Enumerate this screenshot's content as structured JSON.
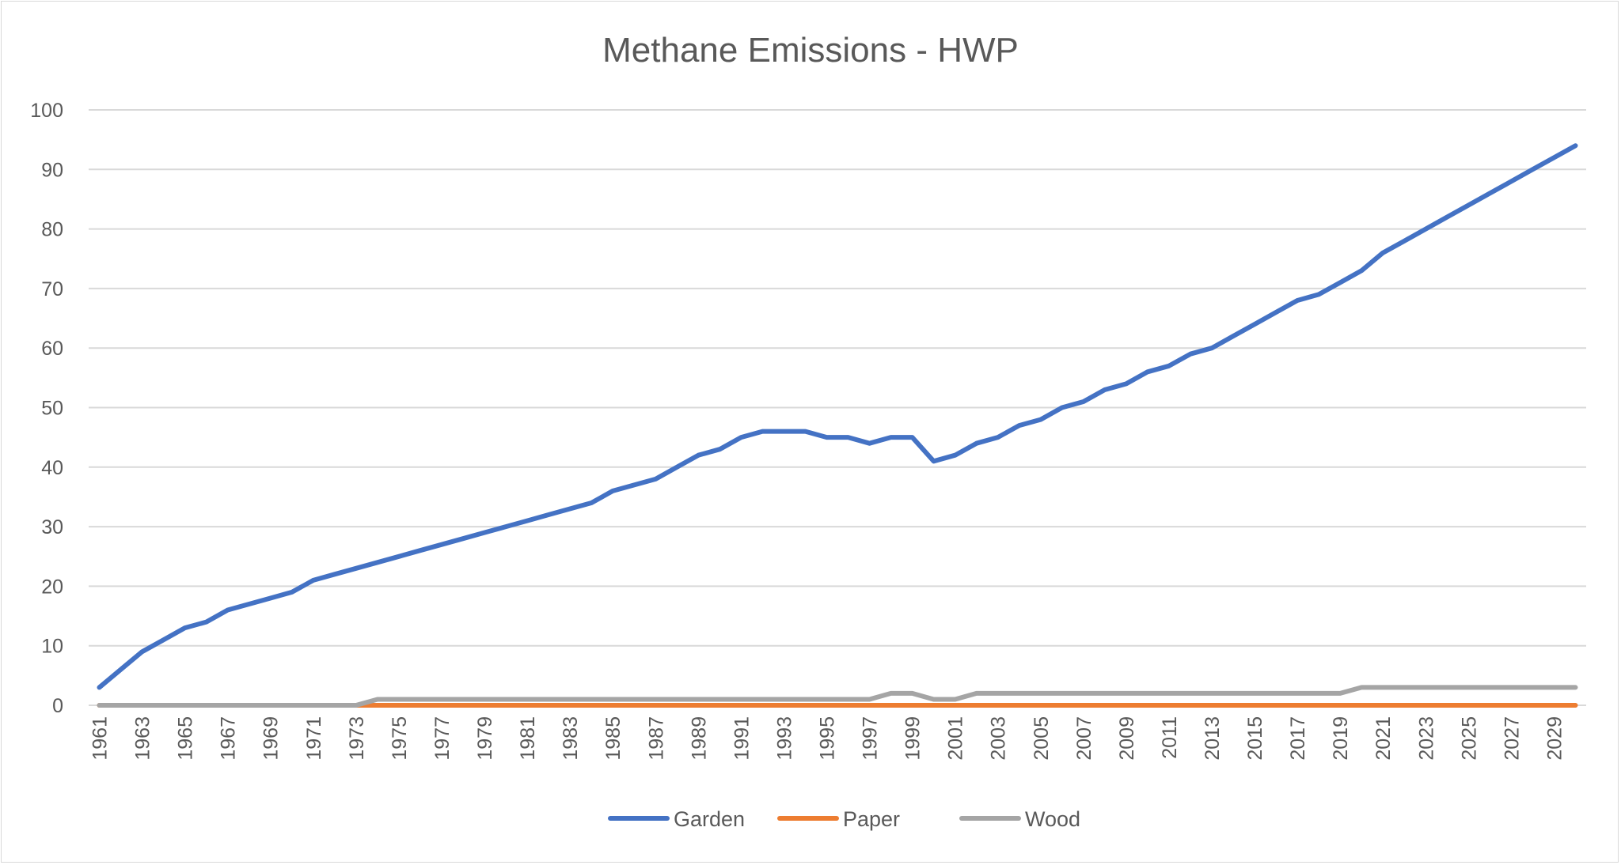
{
  "chart_data": {
    "type": "line",
    "title": "Methane Emissions - HWP",
    "xlabel": "",
    "ylabel": "",
    "ylim": [
      0,
      100
    ],
    "yticks": [
      0,
      10,
      20,
      30,
      40,
      50,
      60,
      70,
      80,
      90,
      100
    ],
    "grid": true,
    "legend_position": "bottom",
    "x": [
      1961,
      1962,
      1963,
      1964,
      1965,
      1966,
      1967,
      1968,
      1969,
      1970,
      1971,
      1972,
      1973,
      1974,
      1975,
      1976,
      1977,
      1978,
      1979,
      1980,
      1981,
      1982,
      1983,
      1984,
      1985,
      1986,
      1987,
      1988,
      1989,
      1990,
      1991,
      1992,
      1993,
      1994,
      1995,
      1996,
      1997,
      1998,
      1999,
      2000,
      2001,
      2002,
      2003,
      2004,
      2005,
      2006,
      2007,
      2008,
      2009,
      2010,
      2011,
      2012,
      2013,
      2014,
      2015,
      2016,
      2017,
      2018,
      2019,
      2020,
      2021,
      2022,
      2023,
      2024,
      2025,
      2026,
      2027,
      2028,
      2029,
      2030
    ],
    "x_tick_labels": [
      "1961",
      "1963",
      "1965",
      "1967",
      "1969",
      "1971",
      "1973",
      "1975",
      "1977",
      "1979",
      "1981",
      "1983",
      "1985",
      "1987",
      "1989",
      "1991",
      "1993",
      "1995",
      "1997",
      "1999",
      "2001",
      "2003",
      "2005",
      "2007",
      "2009",
      "2011",
      "2013",
      "2015",
      "2017",
      "2019",
      "2021",
      "2023",
      "2025",
      "2027",
      "2029"
    ],
    "series": [
      {
        "name": "Garden",
        "color": "#4472C4",
        "values": [
          3,
          6,
          9,
          11,
          13,
          14,
          16,
          17,
          18,
          19,
          21,
          22,
          23,
          24,
          25,
          26,
          27,
          28,
          29,
          30,
          31,
          32,
          33,
          34,
          36,
          37,
          38,
          40,
          42,
          43,
          45,
          46,
          46,
          46,
          45,
          45,
          44,
          45,
          45,
          41,
          42,
          44,
          45,
          47,
          48,
          50,
          51,
          53,
          54,
          56,
          57,
          59,
          60,
          62,
          64,
          66,
          68,
          69,
          71,
          73,
          76,
          78,
          80,
          82,
          84,
          86,
          88,
          90,
          92,
          94
        ]
      },
      {
        "name": "Paper",
        "color": "#ED7D31",
        "values": [
          0,
          0,
          0,
          0,
          0,
          0,
          0,
          0,
          0,
          0,
          0,
          0,
          0,
          0,
          0,
          0,
          0,
          0,
          0,
          0,
          0,
          0,
          0,
          0,
          0,
          0,
          0,
          0,
          0,
          0,
          0,
          0,
          0,
          0,
          0,
          0,
          0,
          0,
          0,
          0,
          0,
          0,
          0,
          0,
          0,
          0,
          0,
          0,
          0,
          0,
          0,
          0,
          0,
          0,
          0,
          0,
          0,
          0,
          0,
          0,
          0,
          0,
          0,
          0,
          0,
          0,
          0,
          0,
          0,
          0
        ]
      },
      {
        "name": "Wood",
        "color": "#A5A5A5",
        "values": [
          0,
          0,
          0,
          0,
          0,
          0,
          0,
          0,
          0,
          0,
          0,
          0,
          0,
          1,
          1,
          1,
          1,
          1,
          1,
          1,
          1,
          1,
          1,
          1,
          1,
          1,
          1,
          1,
          1,
          1,
          1,
          1,
          1,
          1,
          1,
          1,
          1,
          2,
          2,
          1,
          1,
          2,
          2,
          2,
          2,
          2,
          2,
          2,
          2,
          2,
          2,
          2,
          2,
          2,
          2,
          2,
          2,
          2,
          2,
          3,
          3,
          3,
          3,
          3,
          3,
          3,
          3,
          3,
          3,
          3
        ]
      }
    ],
    "gridline_color": "#d9d9d9"
  }
}
